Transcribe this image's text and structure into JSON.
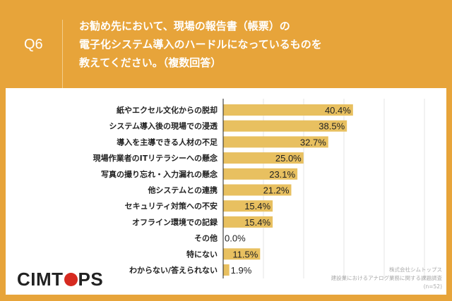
{
  "header": {
    "question_no": "Q6",
    "title": "お勧め先において、現場の報告書（帳票）の\n電子化システム導入のハードルになっているものを\n教えてください。（複数回答）"
  },
  "chart_data": {
    "type": "bar",
    "orientation": "horizontal",
    "categories": [
      "紙やエクセル文化からの脱却",
      "システム導入後の現場での浸透",
      "導入を主導できる人材の不足",
      "現場作業者のITリテラシーへの懸念",
      "写真の撮り忘れ・入力漏れの懸念",
      "他システムとの連携",
      "セキュリティ対策への不安",
      "オフライン環境での記録",
      "その他",
      "特にない",
      "わからない/答えられない"
    ],
    "values": [
      40.4,
      38.5,
      32.7,
      25.0,
      23.1,
      21.2,
      15.4,
      15.4,
      0.0,
      11.5,
      1.9
    ],
    "labels": [
      "40.4%",
      "38.5%",
      "32.7%",
      "25.0%",
      "23.1%",
      "21.2%",
      "15.4%",
      "15.4%",
      "0.0%",
      "11.5%",
      "1.9%"
    ],
    "unit": "%",
    "grid": true,
    "bar_color": "#E8C060"
  },
  "footer": {
    "logo": "CIMTOPS",
    "company": "株式会社シムトップス",
    "survey": "建設業におけるアナログ業務に関する課題調査",
    "n": "(n=52)"
  }
}
